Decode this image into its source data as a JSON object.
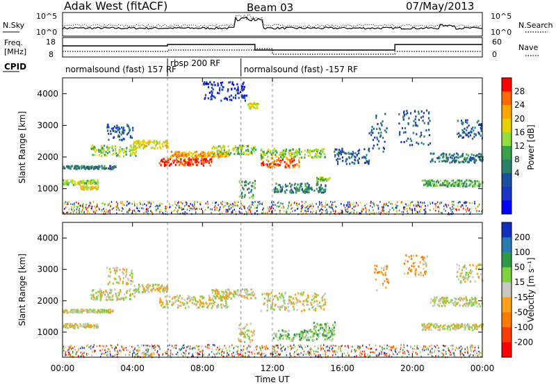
{
  "header": {
    "station": "Adak West (fitACF)",
    "beam": "Beam 03",
    "date": "07/May/2013"
  },
  "noise_panel": {
    "left_label": "N.Sky",
    "right_label": "N.Search",
    "left_ticks": [
      "10^5",
      "10^0"
    ],
    "right_ticks": [
      "10^5",
      "10^0"
    ]
  },
  "freq_panel": {
    "label_line1": "Freq.",
    "label_line2": "[MHz]",
    "left_ticks": [
      "18",
      "8"
    ],
    "right_ticks": [
      "60",
      "0"
    ],
    "right_label": "Nave"
  },
  "cpid": {
    "label": "CPID",
    "segments": [
      {
        "text": "normalsound (fast) 157 RF",
        "start_hour": 0,
        "end_hour": 6
      },
      {
        "text": "rbsp 200 RF",
        "start_hour": 6,
        "end_hour": 10.2
      },
      {
        "text": "normalsound (fast) -157 RF",
        "start_hour": 10.2,
        "end_hour": 24
      }
    ]
  },
  "chart_data": [
    {
      "type": "heatmap",
      "name": "power",
      "ylabel": "Slant Range [km]",
      "y_ticks": [
        1000,
        2000,
        3000,
        4000
      ],
      "ylim": [
        200,
        4500
      ],
      "xlim": [
        0,
        24
      ],
      "colorbar": {
        "title": "Power [dB]",
        "ticks": [
          "28",
          "24",
          "20",
          "16",
          "12",
          "8",
          "4"
        ],
        "colors": [
          "#ff0000",
          "#ff6a00",
          "#ffa500",
          "#e6d200",
          "#90dd3c",
          "#3aa34a",
          "#2e7e6e",
          "#1c4f9e",
          "#1a35c8",
          "#0000ff"
        ]
      },
      "bands": [
        {
          "start": 0,
          "end": 2.0,
          "range": [
            1150,
            1300
          ],
          "level": 5
        },
        {
          "start": 1.0,
          "end": 2.0,
          "range": [
            1000,
            1100
          ],
          "level": 6
        },
        {
          "start": 0,
          "end": 3.0,
          "range": [
            1650,
            1750
          ],
          "level": 3
        },
        {
          "start": 1.6,
          "end": 4.2,
          "range": [
            2050,
            2400
          ],
          "level": 5
        },
        {
          "start": 2.5,
          "end": 4.0,
          "range": [
            2550,
            3100
          ],
          "level": 2
        },
        {
          "start": 4.0,
          "end": 6.0,
          "range": [
            2300,
            2550
          ],
          "level": 6
        },
        {
          "start": 5.5,
          "end": 8.5,
          "range": [
            1750,
            2000
          ],
          "level": 9
        },
        {
          "start": 6.0,
          "end": 9.5,
          "range": [
            2000,
            2200
          ],
          "level": 7
        },
        {
          "start": 8.5,
          "end": 11.0,
          "range": [
            2100,
            2400
          ],
          "level": 5
        },
        {
          "start": 10.5,
          "end": 11.2,
          "range": [
            3550,
            3750
          ],
          "level": 6
        },
        {
          "start": 10.0,
          "end": 11.0,
          "range": [
            700,
            1300
          ],
          "level": 4
        },
        {
          "start": 11.3,
          "end": 13.5,
          "range": [
            1700,
            2000
          ],
          "level": 8
        },
        {
          "start": 11.3,
          "end": 15.0,
          "range": [
            2000,
            2300
          ],
          "level": 5
        },
        {
          "start": 12.0,
          "end": 15.0,
          "range": [
            900,
            1200
          ],
          "level": 3
        },
        {
          "start": 14.5,
          "end": 15.3,
          "range": [
            1200,
            1400
          ],
          "level": 5
        },
        {
          "start": 15.5,
          "end": 17.5,
          "range": [
            1800,
            2300
          ],
          "level": 2
        },
        {
          "start": 17.5,
          "end": 18.5,
          "range": [
            2200,
            3400
          ],
          "level": 2
        },
        {
          "start": 19.2,
          "end": 21.0,
          "range": [
            2400,
            3500
          ],
          "level": 2
        },
        {
          "start": 20.5,
          "end": 24.0,
          "range": [
            1100,
            1300
          ],
          "level": 4
        },
        {
          "start": 21.0,
          "end": 24.0,
          "range": [
            1850,
            2150
          ],
          "level": 3
        },
        {
          "start": 22.5,
          "end": 24.0,
          "range": [
            2600,
            3200
          ],
          "level": 2
        },
        {
          "start": 8.0,
          "end": 10.5,
          "range": [
            3800,
            4400
          ],
          "level": 1
        }
      ]
    },
    {
      "type": "heatmap",
      "name": "velocity",
      "ylabel": "Slant Range [km]",
      "y_ticks": [
        1000,
        2000,
        3000,
        4000
      ],
      "ylim": [
        200,
        4500
      ],
      "xlim": [
        0,
        24
      ],
      "colorbar": {
        "title": "Velocity [m s⁻¹]",
        "ticks": [
          "200",
          "100",
          "50",
          "15",
          "-15",
          "-50",
          "-100",
          "-200"
        ],
        "colors": [
          "#1030c0",
          "#2a7ab0",
          "#2f9a46",
          "#80d040",
          "#c8c8c0",
          "#ff9f1a",
          "#ff7a00",
          "#ff3c00",
          "#ff0000"
        ]
      },
      "bands": [
        {
          "start": 0,
          "end": 2.0,
          "range": [
            1150,
            1300
          ],
          "level": 4
        },
        {
          "start": 0,
          "end": 3.0,
          "range": [
            1650,
            1750
          ],
          "level": 4
        },
        {
          "start": 1.6,
          "end": 4.2,
          "range": [
            2050,
            2400
          ],
          "level": 4
        },
        {
          "start": 2.5,
          "end": 4.0,
          "range": [
            2550,
            3100
          ],
          "level": 4
        },
        {
          "start": 4.0,
          "end": 6.0,
          "range": [
            2300,
            2550
          ],
          "level": 4
        },
        {
          "start": 5.5,
          "end": 9.5,
          "range": [
            1800,
            2200
          ],
          "level": 4
        },
        {
          "start": 8.5,
          "end": 11.0,
          "range": [
            2100,
            2400
          ],
          "level": 4
        },
        {
          "start": 11.3,
          "end": 15.0,
          "range": [
            1700,
            2300
          ],
          "level": 4
        },
        {
          "start": 12.0,
          "end": 15.5,
          "range": [
            750,
            1100
          ],
          "level": 5
        },
        {
          "start": 14.3,
          "end": 15.6,
          "range": [
            900,
            1350
          ],
          "level": 5
        },
        {
          "start": 10.0,
          "end": 11.0,
          "range": [
            700,
            1300
          ],
          "level": 4
        },
        {
          "start": 17.8,
          "end": 18.6,
          "range": [
            2300,
            3200
          ],
          "level": 3
        },
        {
          "start": 19.5,
          "end": 20.8,
          "range": [
            2800,
            3500
          ],
          "level": 3
        },
        {
          "start": 20.5,
          "end": 24.0,
          "range": [
            1100,
            1300
          ],
          "level": 4
        },
        {
          "start": 21.0,
          "end": 24.0,
          "range": [
            1850,
            2150
          ],
          "level": 4
        },
        {
          "start": 22.5,
          "end": 24.0,
          "range": [
            2600,
            3200
          ],
          "level": 4
        }
      ]
    }
  ],
  "x_axis": {
    "title": "Time UT",
    "ticks": [
      "00:00",
      "04:00",
      "08:00",
      "12:00",
      "16:00",
      "20:00",
      "00:00"
    ]
  }
}
